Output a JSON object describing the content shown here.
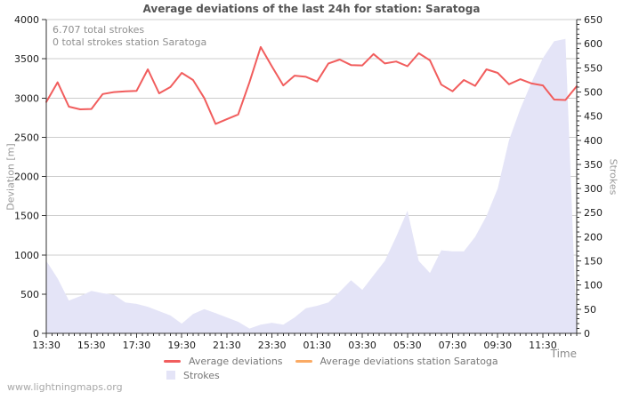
{
  "watermark": "www.lightningmaps.org",
  "chart_data": {
    "type": "line",
    "title": "Average deviations of the last 24h for station: Saratoga",
    "annotations": [
      "6.707 total strokes",
      "0 total strokes station Saratoga"
    ],
    "x_label": "Time",
    "x": [
      "13:30",
      "14:00",
      "14:30",
      "15:00",
      "15:30",
      "16:00",
      "16:30",
      "17:00",
      "17:30",
      "18:00",
      "18:30",
      "19:00",
      "19:30",
      "20:00",
      "20:30",
      "21:00",
      "21:30",
      "22:00",
      "22:30",
      "23:00",
      "23:30",
      "00:00",
      "00:30",
      "01:00",
      "01:30",
      "02:00",
      "02:30",
      "03:00",
      "03:30",
      "04:00",
      "04:30",
      "05:00",
      "05:30",
      "06:00",
      "06:30",
      "07:00",
      "07:30",
      "08:00",
      "08:30",
      "09:00",
      "09:30",
      "10:00",
      "10:30",
      "11:00",
      "11:30",
      "12:00",
      "12:30",
      "13:00"
    ],
    "x_tick_labels": [
      "13:30",
      "15:30",
      "17:30",
      "19:30",
      "21:30",
      "23:30",
      "01:30",
      "03:30",
      "05:30",
      "07:30",
      "09:30",
      "11:30"
    ],
    "left_axis": {
      "label": "Deviation [m]",
      "min": 0,
      "max": 4000,
      "tick_step": 500
    },
    "right_axis": {
      "label": "Strokes",
      "min": 0,
      "max": 650,
      "tick_step": 50,
      "minor_step": 10
    },
    "grid": "horizontal",
    "legend_position": "bottom",
    "series": [
      {
        "name": "Average deviations",
        "type": "line",
        "axis": "left",
        "color": "#f15d5d",
        "values": [
          2950,
          3200,
          2890,
          2855,
          2860,
          3050,
          3075,
          3085,
          3090,
          3365,
          3060,
          3140,
          3320,
          3230,
          3000,
          2670,
          2730,
          2790,
          3200,
          3650,
          3400,
          3160,
          3285,
          3270,
          3210,
          3440,
          3490,
          3420,
          3415,
          3560,
          3440,
          3465,
          3405,
          3570,
          3480,
          3170,
          3085,
          3230,
          3155,
          3365,
          3320,
          3175,
          3240,
          3185,
          3160,
          2980,
          2975,
          3150
        ]
      },
      {
        "name": "Average deviations station Saratoga",
        "type": "line",
        "axis": "left",
        "color": "#faaa64",
        "values": []
      },
      {
        "name": "Strokes",
        "type": "area",
        "axis": "right",
        "color": "#e4e4f7",
        "values": [
          150,
          114,
          68,
          77,
          88,
          83,
          80,
          64,
          61,
          55,
          46,
          37,
          20,
          40,
          50,
          42,
          33,
          24,
          10,
          18,
          22,
          18,
          33,
          52,
          57,
          64,
          86,
          110,
          90,
          120,
          150,
          200,
          254,
          150,
          125,
          172,
          170,
          170,
          200,
          243,
          300,
          400,
          465,
          520,
          570,
          605,
          610,
          0
        ]
      }
    ],
    "colors": {
      "grid": "#cccccc",
      "axis": "#333333",
      "tick_text": "#1a1a1a"
    }
  }
}
